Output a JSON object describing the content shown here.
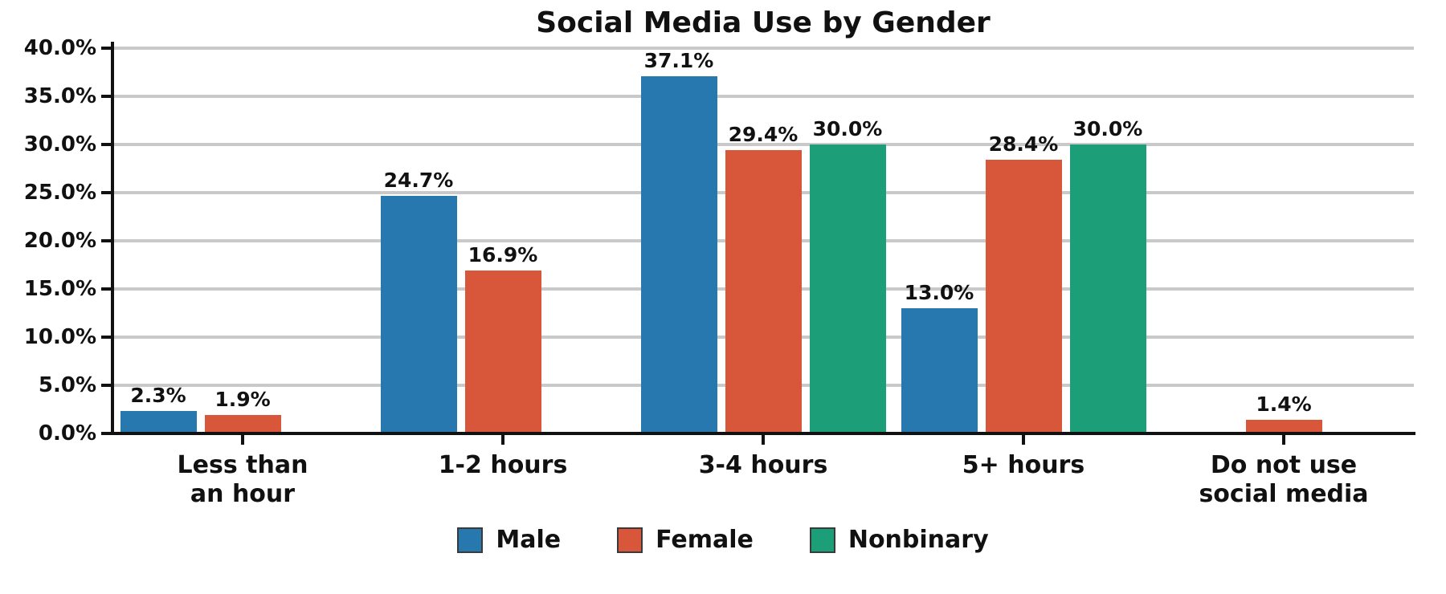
{
  "chart_data": {
    "type": "bar",
    "title": "Social Media Use by Gender",
    "categories": [
      "Less than\nan hour",
      "1-2 hours",
      "3-4 hours",
      "5+ hours",
      "Do not use\nsocial media"
    ],
    "series": [
      {
        "name": "Male",
        "color": "#2878b0",
        "values": [
          2.3,
          24.7,
          37.1,
          13.0,
          null
        ]
      },
      {
        "name": "Female",
        "color": "#d8573a",
        "values": [
          1.9,
          16.9,
          29.4,
          28.4,
          1.4
        ]
      },
      {
        "name": "Nonbinary",
        "color": "#1c9e78",
        "values": [
          null,
          null,
          30.0,
          30.0,
          null
        ]
      }
    ],
    "ylim": [
      0,
      40
    ],
    "ytick_step": 5,
    "ytick_labels": [
      "0.0%",
      "5.0%",
      "10.0%",
      "15.0%",
      "20.0%",
      "25.0%",
      "30.0%",
      "35.0%",
      "40.0%"
    ],
    "value_suffix": "%",
    "grid": true,
    "legend_position": "bottom",
    "axis_color": "#111111",
    "grid_color": "#c9c9c9"
  }
}
